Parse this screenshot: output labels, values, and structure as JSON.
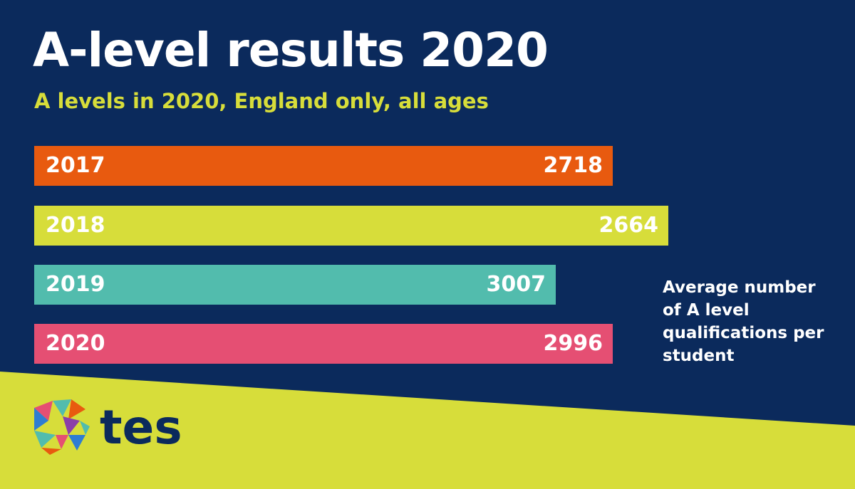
{
  "colors": {
    "background": "#0b2a5c",
    "accent": "#d7dd3a"
  },
  "chart_data": {
    "type": "bar",
    "orientation": "horizontal",
    "title": "A-level results 2020",
    "subtitle": "A levels in 2020, England only, all ages",
    "categories": [
      "2017",
      "2018",
      "2019",
      "2020"
    ],
    "values": [
      2718,
      2664,
      3007,
      2996
    ],
    "bar_colors": [
      "#e85a0f",
      "#d7dd3a",
      "#52bcad",
      "#e54f73"
    ],
    "note": "Average number of A level qualifications per student",
    "grid": false,
    "legend": "none"
  },
  "logo": {
    "text": "tes",
    "icon": "tes-triangle-mosaic-icon"
  }
}
